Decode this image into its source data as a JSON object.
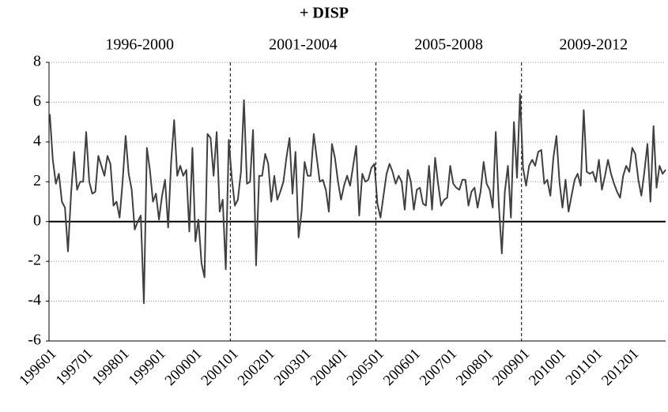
{
  "chart_data": {
    "type": "line",
    "title": "+ DISP",
    "annotations": [
      "1996-2000",
      "2001-2004",
      "2005-2008",
      "2009-2012"
    ],
    "categories": [
      "199601",
      null,
      null,
      null,
      null,
      null,
      null,
      null,
      null,
      null,
      null,
      null,
      "199701",
      null,
      null,
      null,
      null,
      null,
      null,
      null,
      null,
      null,
      null,
      null,
      "199801",
      null,
      null,
      null,
      null,
      null,
      null,
      null,
      null,
      null,
      null,
      null,
      "199901",
      null,
      null,
      null,
      null,
      null,
      null,
      null,
      null,
      null,
      null,
      null,
      "200001",
      null,
      null,
      null,
      null,
      null,
      null,
      null,
      null,
      null,
      null,
      null,
      "200101",
      null,
      null,
      null,
      null,
      null,
      null,
      null,
      null,
      null,
      null,
      null,
      "200201",
      null,
      null,
      null,
      null,
      null,
      null,
      null,
      null,
      null,
      null,
      null,
      "200301",
      null,
      null,
      null,
      null,
      null,
      null,
      null,
      null,
      null,
      null,
      null,
      "200401",
      null,
      null,
      null,
      null,
      null,
      null,
      null,
      null,
      null,
      null,
      null,
      "200501",
      null,
      null,
      null,
      null,
      null,
      null,
      null,
      null,
      null,
      null,
      null,
      "200601",
      null,
      null,
      null,
      null,
      null,
      null,
      null,
      null,
      null,
      null,
      null,
      "200701",
      null,
      null,
      null,
      null,
      null,
      null,
      null,
      null,
      null,
      null,
      null,
      "200801",
      null,
      null,
      null,
      null,
      null,
      null,
      null,
      null,
      null,
      null,
      null,
      "200901",
      null,
      null,
      null,
      null,
      null,
      null,
      null,
      null,
      null,
      null,
      null,
      "201001",
      null,
      null,
      null,
      null,
      null,
      null,
      null,
      null,
      null,
      null,
      null,
      "201101",
      null,
      null,
      null,
      null,
      null,
      null,
      null,
      null,
      null,
      null,
      null,
      "201201",
      null,
      null,
      null,
      null,
      null,
      null,
      null,
      null,
      null,
      null,
      null
    ],
    "values": [
      5.4,
      3.1,
      1.9,
      2.4,
      1.0,
      0.7,
      -1.5,
      1.4,
      3.5,
      1.6,
      2.0,
      2.0,
      4.5,
      2.0,
      1.4,
      1.5,
      3.3,
      2.8,
      2.3,
      3.3,
      2.9,
      0.8,
      1.0,
      0.2,
      2.0,
      4.3,
      2.4,
      1.6,
      -0.4,
      0.0,
      0.3,
      -4.1,
      3.7,
      2.6,
      1.0,
      1.4,
      0.1,
      1.3,
      2.1,
      -0.3,
      3.0,
      5.1,
      2.3,
      2.8,
      2.3,
      2.6,
      -0.5,
      3.7,
      -1.0,
      0.1,
      -2.1,
      -2.8,
      4.4,
      4.2,
      2.3,
      4.5,
      0.5,
      1.1,
      -2.4,
      4.1,
      2.2,
      0.8,
      1.1,
      2.5,
      6.1,
      1.9,
      2.0,
      4.6,
      -2.2,
      2.3,
      2.3,
      3.4,
      2.9,
      1.0,
      2.3,
      1.1,
      1.5,
      2.0,
      3.2,
      4.2,
      1.4,
      3.5,
      -0.8,
      0.5,
      3.0,
      2.3,
      2.3,
      4.4,
      3.2,
      2.0,
      2.1,
      1.6,
      0.5,
      3.9,
      3.2,
      2.0,
      1.1,
      1.8,
      2.3,
      1.8,
      2.8,
      3.8,
      0.3,
      2.4,
      2.0,
      2.1,
      2.7,
      2.9,
      0.9,
      0.2,
      1.3,
      2.4,
      2.9,
      2.5,
      1.9,
      2.3,
      2.0,
      0.6,
      2.6,
      2.0,
      0.6,
      1.6,
      1.7,
      0.9,
      0.8,
      2.8,
      0.6,
      3.2,
      1.9,
      0.8,
      1.1,
      1.2,
      2.8,
      1.9,
      1.7,
      1.6,
      2.1,
      2.1,
      0.8,
      1.5,
      1.7,
      0.7,
      1.5,
      3.0,
      1.9,
      1.6,
      0.7,
      4.5,
      0.9,
      -1.6,
      1.5,
      2.8,
      0.2,
      5.0,
      2.2,
      6.4,
      2.7,
      1.8,
      2.8,
      3.1,
      2.8,
      3.5,
      3.6,
      1.9,
      2.1,
      1.3,
      3.2,
      4.3,
      2.0,
      0.7,
      2.1,
      0.5,
      1.3,
      2.1,
      2.4,
      1.8,
      5.6,
      2.5,
      2.4,
      2.5,
      2.0,
      3.1,
      1.6,
      2.3,
      3.1,
      2.4,
      1.9,
      1.5,
      1.2,
      2.3,
      2.8,
      2.5,
      3.7,
      3.4,
      2.1,
      1.3,
      2.5,
      3.9,
      1.0,
      4.8,
      1.7,
      2.8,
      2.4,
      2.6
    ],
    "color": "#404040",
    "ylim": [
      -6,
      8
    ],
    "yticks": [
      -6,
      -4,
      -2,
      0,
      2,
      4,
      6,
      8
    ],
    "grid": true
  }
}
